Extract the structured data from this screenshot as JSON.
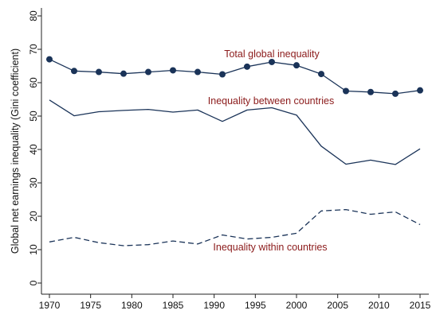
{
  "chart_data": {
    "type": "line",
    "title": "",
    "xlabel": "",
    "ylabel": "Global net earnings inequality (Gini coefficient)",
    "xlim": [
      1970,
      2015
    ],
    "ylim": [
      0,
      80
    ],
    "x_ticks": [
      1970,
      1975,
      1980,
      1985,
      1990,
      1995,
      2000,
      2005,
      2010,
      2015
    ],
    "y_ticks": [
      0,
      10,
      20,
      30,
      40,
      50,
      60,
      70,
      80
    ],
    "x": [
      1970,
      1973,
      1976,
      1979,
      1982,
      1985,
      1988,
      1991,
      1994,
      1997,
      2000,
      2003,
      2006,
      2009,
      2012,
      2015
    ],
    "grid": false,
    "legend": "none",
    "series": [
      {
        "name": "Total global inequality",
        "style": "solid-markers",
        "color": "#1a3358",
        "label_color": "#8b1a1a",
        "values": [
          67,
          63.5,
          63.2,
          62.7,
          63.2,
          63.7,
          63.2,
          62.5,
          64.8,
          66.2,
          65.2,
          62.6,
          57.5,
          57.2,
          56.7,
          57.7
        ]
      },
      {
        "name": "Inequality between countries",
        "style": "solid",
        "color": "#1a3358",
        "label_color": "#8b1a1a",
        "values": [
          54.8,
          50.1,
          51.3,
          51.7,
          52.0,
          51.2,
          51.8,
          48.4,
          51.8,
          52.5,
          50.3,
          41.0,
          35.6,
          36.8,
          35.5,
          40.2
        ]
      },
      {
        "name": "Inequality within countries",
        "style": "dashed",
        "color": "#1a3358",
        "label_color": "#8b1a1a",
        "values": [
          12.3,
          13.7,
          12.1,
          11.2,
          11.5,
          12.6,
          11.7,
          14.4,
          13.2,
          13.7,
          14.9,
          21.6,
          22.0,
          20.6,
          21.3,
          17.5
        ]
      }
    ]
  }
}
